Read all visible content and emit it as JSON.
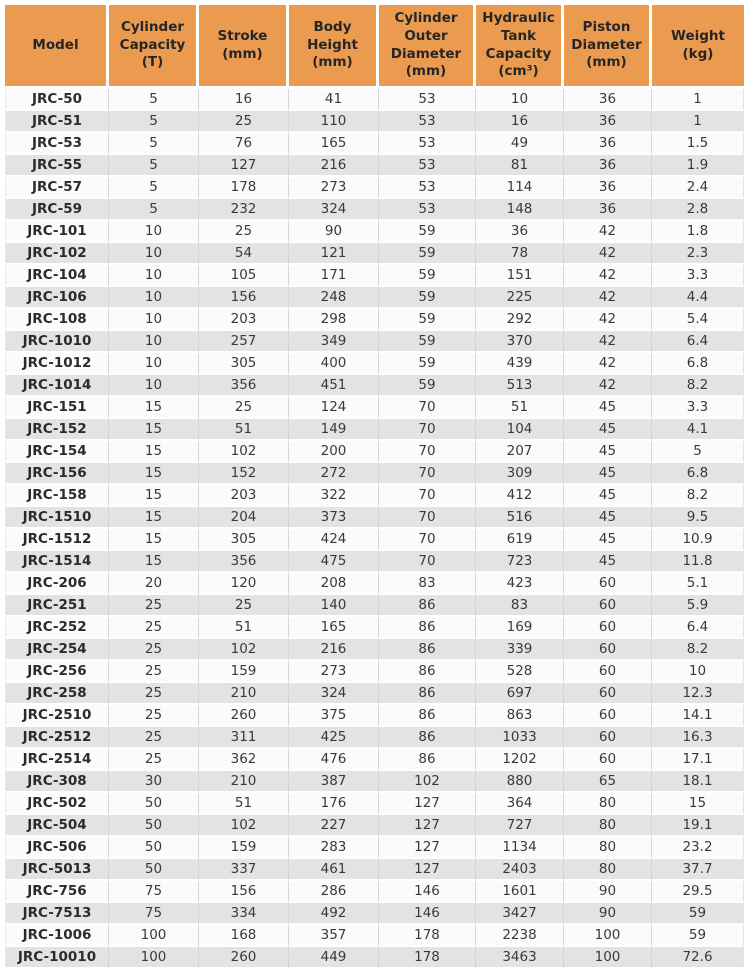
{
  "colors": {
    "header_bg": "#EA9B50",
    "header_text": "#262626",
    "row_bg": "#FBFBFB",
    "row_alt_bg": "#E3E3E3",
    "body_text": "#3A3A3A",
    "grid_line": "#D5D5D5"
  },
  "table": {
    "columns": [
      "Model",
      "Cylinder\nCapacity\n(T)",
      "Stroke\n(mm)",
      "Body\nHeight\n(mm)",
      "Cylinder\nOuter\nDiameter\n(mm)",
      "Hydraulic\nTank\nCapacity\n(cm³)",
      "Piston\nDiameter\n(mm)",
      "Weight\n(kg)"
    ],
    "rows": [
      [
        "JRC-50",
        "5",
        "16",
        "41",
        "53",
        "10",
        "36",
        "1"
      ],
      [
        "JRC-51",
        "5",
        "25",
        "110",
        "53",
        "16",
        "36",
        "1"
      ],
      [
        "JRC-53",
        "5",
        "76",
        "165",
        "53",
        "49",
        "36",
        "1.5"
      ],
      [
        "JRC-55",
        "5",
        "127",
        "216",
        "53",
        "81",
        "36",
        "1.9"
      ],
      [
        "JRC-57",
        "5",
        "178",
        "273",
        "53",
        "114",
        "36",
        "2.4"
      ],
      [
        "JRC-59",
        "5",
        "232",
        "324",
        "53",
        "148",
        "36",
        "2.8"
      ],
      [
        "JRC-101",
        "10",
        "25",
        "90",
        "59",
        "36",
        "42",
        "1.8"
      ],
      [
        "JRC-102",
        "10",
        "54",
        "121",
        "59",
        "78",
        "42",
        "2.3"
      ],
      [
        "JRC-104",
        "10",
        "105",
        "171",
        "59",
        "151",
        "42",
        "3.3"
      ],
      [
        "JRC-106",
        "10",
        "156",
        "248",
        "59",
        "225",
        "42",
        "4.4"
      ],
      [
        "JRC-108",
        "10",
        "203",
        "298",
        "59",
        "292",
        "42",
        "5.4"
      ],
      [
        "JRC-1010",
        "10",
        "257",
        "349",
        "59",
        "370",
        "42",
        "6.4"
      ],
      [
        "JRC-1012",
        "10",
        "305",
        "400",
        "59",
        "439",
        "42",
        "6.8"
      ],
      [
        "JRC-1014",
        "10",
        "356",
        "451",
        "59",
        "513",
        "42",
        "8.2"
      ],
      [
        "JRC-151",
        "15",
        "25",
        "124",
        "70",
        "51",
        "45",
        "3.3"
      ],
      [
        "JRC-152",
        "15",
        "51",
        "149",
        "70",
        "104",
        "45",
        "4.1"
      ],
      [
        "JRC-154",
        "15",
        "102",
        "200",
        "70",
        "207",
        "45",
        "5"
      ],
      [
        "JRC-156",
        "15",
        "152",
        "272",
        "70",
        "309",
        "45",
        "6.8"
      ],
      [
        "JRC-158",
        "15",
        "203",
        "322",
        "70",
        "412",
        "45",
        "8.2"
      ],
      [
        "JRC-1510",
        "15",
        "204",
        "373",
        "70",
        "516",
        "45",
        "9.5"
      ],
      [
        "JRC-1512",
        "15",
        "305",
        "424",
        "70",
        "619",
        "45",
        "10.9"
      ],
      [
        "JRC-1514",
        "15",
        "356",
        "475",
        "70",
        "723",
        "45",
        "11.8"
      ],
      [
        "JRC-206",
        "20",
        "120",
        "208",
        "83",
        "423",
        "60",
        "5.1"
      ],
      [
        "JRC-251",
        "25",
        "25",
        "140",
        "86",
        "83",
        "60",
        "5.9"
      ],
      [
        "JRC-252",
        "25",
        "51",
        "165",
        "86",
        "169",
        "60",
        "6.4"
      ],
      [
        "JRC-254",
        "25",
        "102",
        "216",
        "86",
        "339",
        "60",
        "8.2"
      ],
      [
        "JRC-256",
        "25",
        "159",
        "273",
        "86",
        "528",
        "60",
        "10"
      ],
      [
        "JRC-258",
        "25",
        "210",
        "324",
        "86",
        "697",
        "60",
        "12.3"
      ],
      [
        "JRC-2510",
        "25",
        "260",
        "375",
        "86",
        "863",
        "60",
        "14.1"
      ],
      [
        "JRC-2512",
        "25",
        "311",
        "425",
        "86",
        "1033",
        "60",
        "16.3"
      ],
      [
        "JRC-2514",
        "25",
        "362",
        "476",
        "86",
        "1202",
        "60",
        "17.1"
      ],
      [
        "JRC-308",
        "30",
        "210",
        "387",
        "102",
        "880",
        "65",
        "18.1"
      ],
      [
        "JRC-502",
        "50",
        "51",
        "176",
        "127",
        "364",
        "80",
        "15"
      ],
      [
        "JRC-504",
        "50",
        "102",
        "227",
        "127",
        "727",
        "80",
        "19.1"
      ],
      [
        "JRC-506",
        "50",
        "159",
        "283",
        "127",
        "1134",
        "80",
        "23.2"
      ],
      [
        "JRC-5013",
        "50",
        "337",
        "461",
        "127",
        "2403",
        "80",
        "37.7"
      ],
      [
        "JRC-756",
        "75",
        "156",
        "286",
        "146",
        "1601",
        "90",
        "29.5"
      ],
      [
        "JRC-7513",
        "75",
        "334",
        "492",
        "146",
        "3427",
        "90",
        "59"
      ],
      [
        "JRC-1006",
        "100",
        "168",
        "357",
        "178",
        "2238",
        "100",
        "59"
      ],
      [
        "JRC-10010",
        "100",
        "260",
        "449",
        "178",
        "3463",
        "100",
        "72.6"
      ]
    ]
  }
}
